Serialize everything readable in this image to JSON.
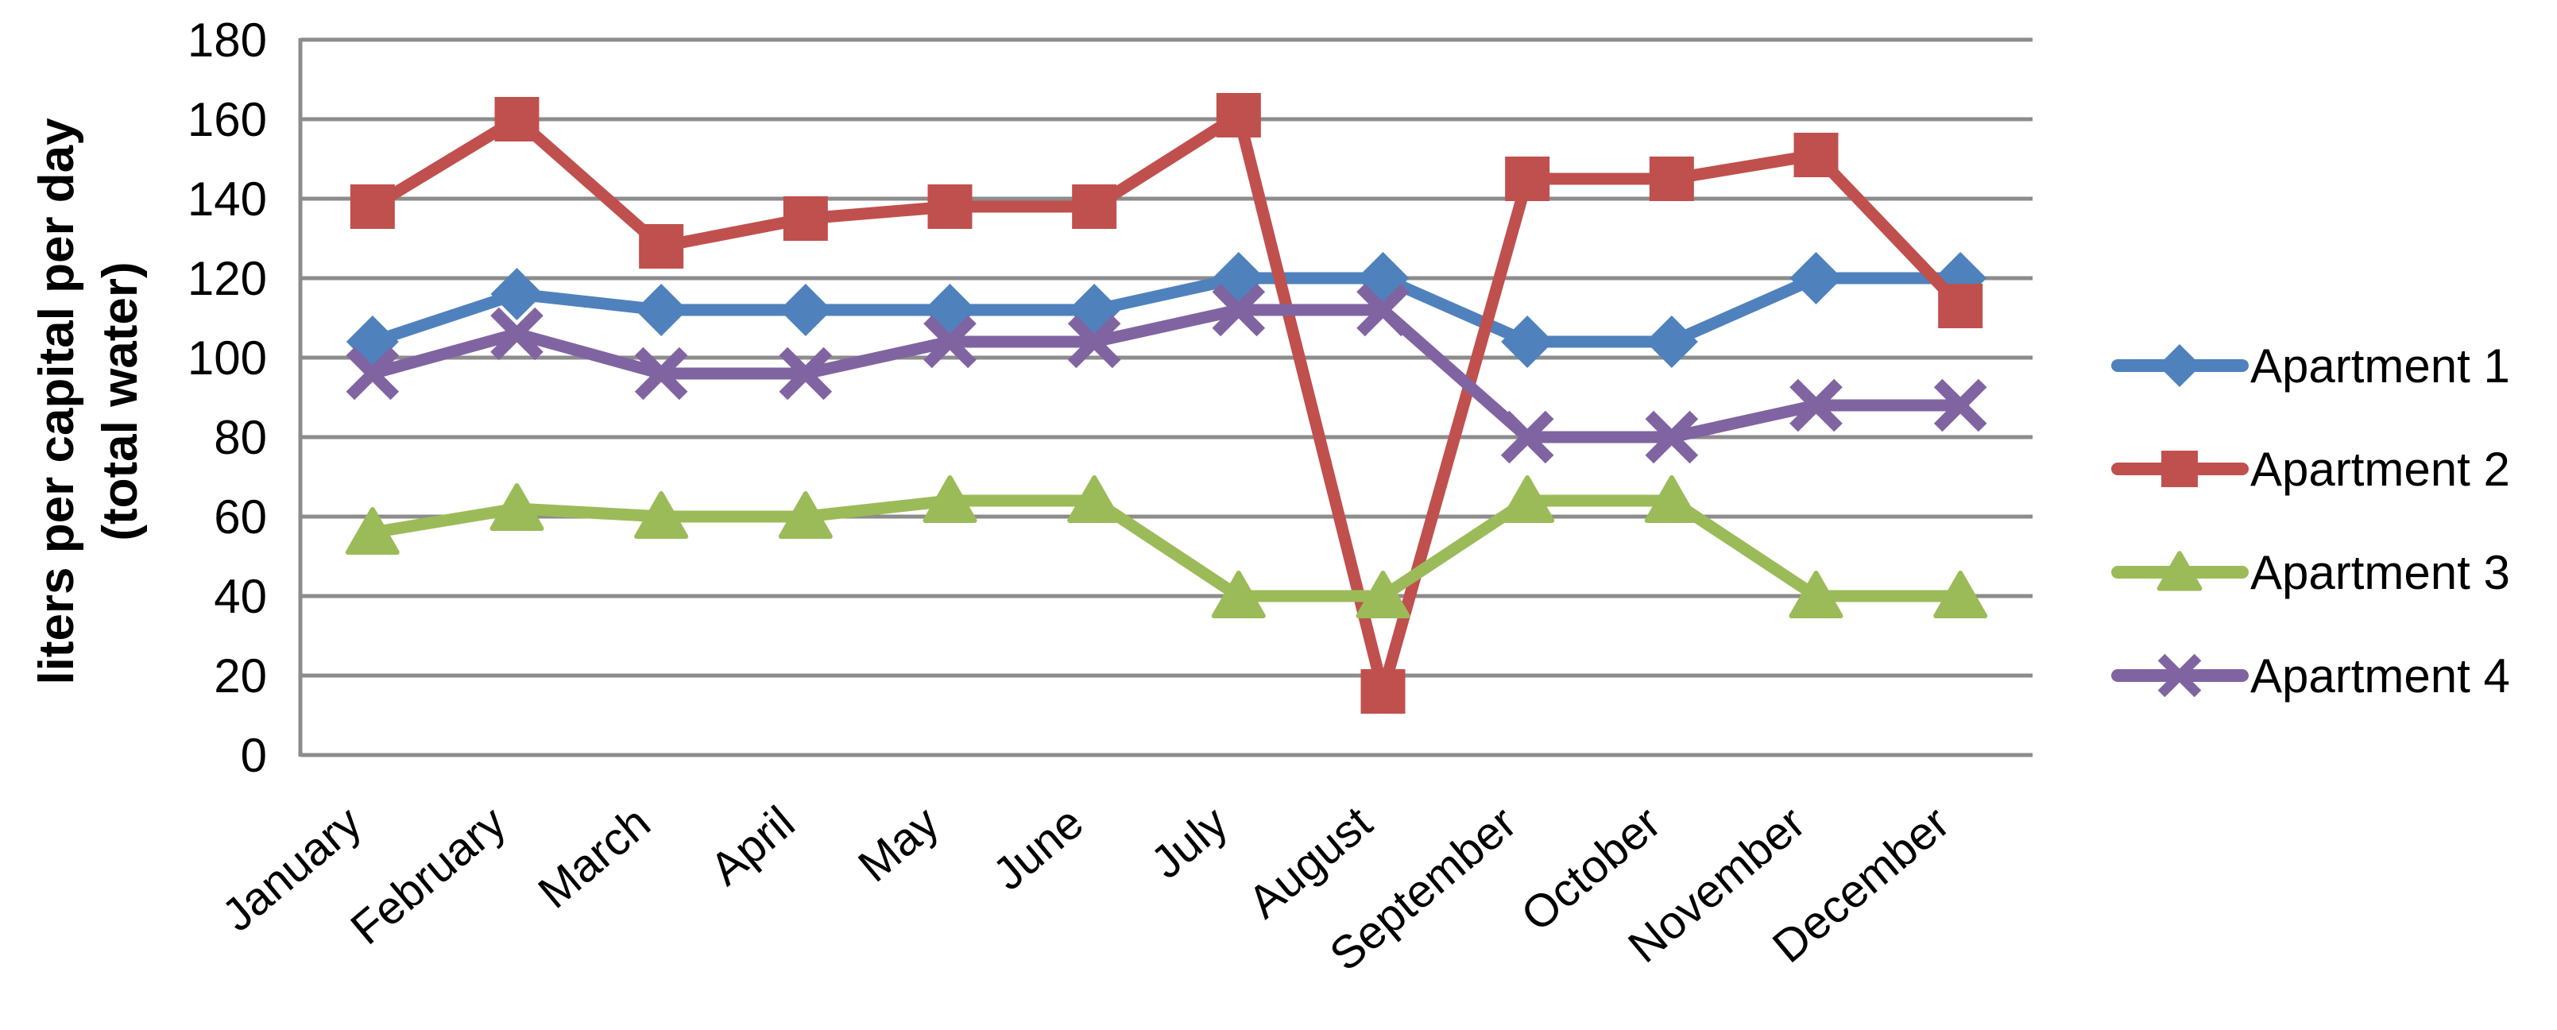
{
  "chart_data": {
    "type": "line",
    "title": "",
    "ylabel_line1": "liters per capital per day",
    "ylabel_line2": "(total water)",
    "xlabel": "",
    "categories": [
      "January",
      "February",
      "March",
      "April",
      "May",
      "June",
      "July",
      "August",
      "September",
      "October",
      "November",
      "December"
    ],
    "series": [
      {
        "name": "Apartment 1",
        "color": "#4F81BD",
        "marker": "diamond",
        "values": [
          104,
          116,
          112,
          112,
          112,
          112,
          120,
          120,
          104,
          104,
          120,
          120
        ]
      },
      {
        "name": "Apartment 2",
        "color": "#C0504D",
        "marker": "square",
        "values": [
          138,
          160,
          128,
          135,
          138,
          138,
          161,
          16,
          145,
          145,
          151,
          113
        ]
      },
      {
        "name": "Apartment 3",
        "color": "#9BBB59",
        "marker": "triangle",
        "values": [
          56,
          62,
          60,
          60,
          64,
          64,
          40,
          40,
          64,
          64,
          40,
          40
        ]
      },
      {
        "name": "Apartment 4",
        "color": "#8064A2",
        "marker": "x",
        "values": [
          96,
          106,
          96,
          96,
          104,
          104,
          112,
          112,
          80,
          80,
          88,
          88
        ]
      }
    ],
    "y_axis": {
      "min": 0,
      "max": 180,
      "step": 20,
      "ticks": [
        "0",
        "20",
        "40",
        "60",
        "80",
        "100",
        "120",
        "140",
        "160",
        "180"
      ]
    },
    "grid": true,
    "grid_color": "#8C8C8C",
    "legend_position": "right"
  }
}
